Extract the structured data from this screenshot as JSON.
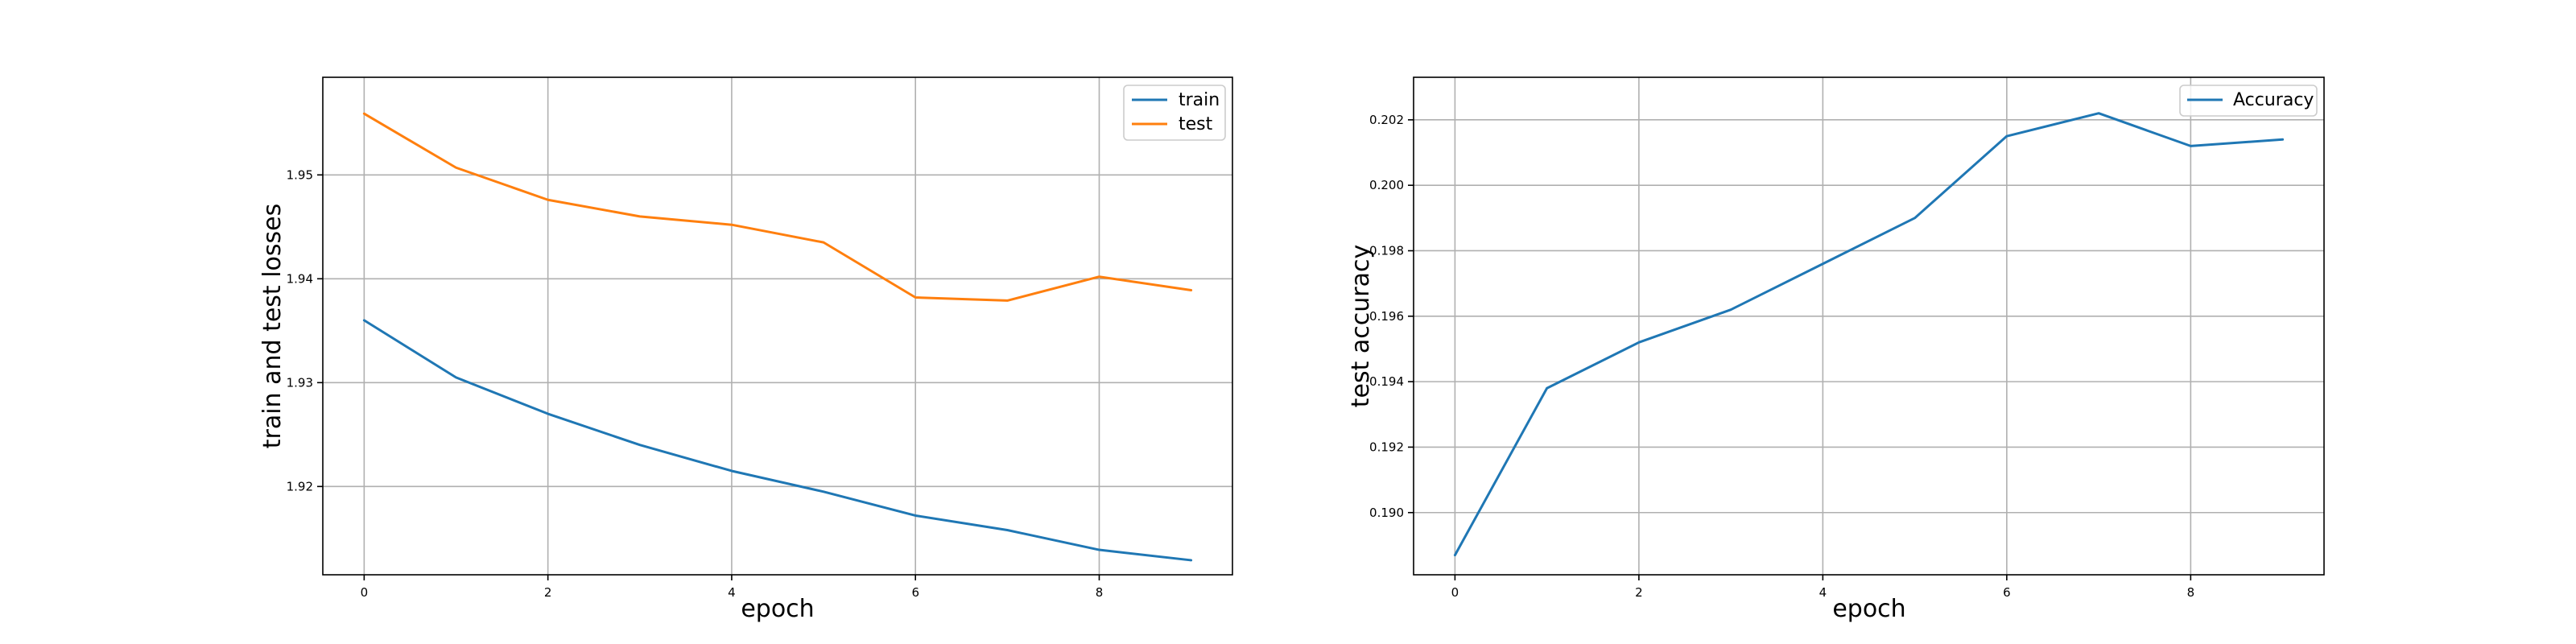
{
  "chart_data": [
    {
      "type": "line",
      "xlabel": "epoch",
      "ylabel": "train and test losses",
      "x": [
        0,
        1,
        2,
        3,
        4,
        5,
        6,
        7,
        8,
        9
      ],
      "xlim": [
        -0.45,
        9.45
      ],
      "ylim": [
        1.9115,
        1.9594
      ],
      "xticks": [
        0,
        2,
        4,
        6,
        8
      ],
      "yticks": [
        1.92,
        1.93,
        1.94,
        1.95
      ],
      "ytick_labels": [
        "1.92",
        "1.93",
        "1.94",
        "1.95"
      ],
      "grid": true,
      "legend_position": "upper-right",
      "series": [
        {
          "name": "train",
          "color": "#1f77b4",
          "values": [
            1.936,
            1.9305,
            1.927,
            1.924,
            1.9215,
            1.9195,
            1.9172,
            1.9158,
            1.9139,
            1.9129
          ]
        },
        {
          "name": "test",
          "color": "#ff7f0e",
          "values": [
            1.9559,
            1.9507,
            1.9476,
            1.946,
            1.9452,
            1.9435,
            1.9382,
            1.9379,
            1.9402,
            1.9389
          ]
        }
      ]
    },
    {
      "type": "line",
      "xlabel": "epoch",
      "ylabel": "test accuracy",
      "x": [
        0,
        1,
        2,
        3,
        4,
        5,
        6,
        7,
        8,
        9
      ],
      "xlim": [
        -0.45,
        9.45
      ],
      "ylim": [
        0.1881,
        0.2033
      ],
      "xticks": [
        0,
        2,
        4,
        6,
        8
      ],
      "yticks": [
        0.19,
        0.192,
        0.194,
        0.196,
        0.198,
        0.2,
        0.202
      ],
      "ytick_labels": [
        "0.190",
        "0.192",
        "0.194",
        "0.196",
        "0.198",
        "0.200",
        "0.202"
      ],
      "grid": true,
      "legend_position": "upper-right",
      "series": [
        {
          "name": "Accuracy",
          "color": "#1f77b4",
          "values": [
            0.1887,
            0.1938,
            0.1952,
            0.1962,
            0.1976,
            0.199,
            0.2015,
            0.2022,
            0.2012,
            0.2014
          ]
        }
      ]
    }
  ]
}
